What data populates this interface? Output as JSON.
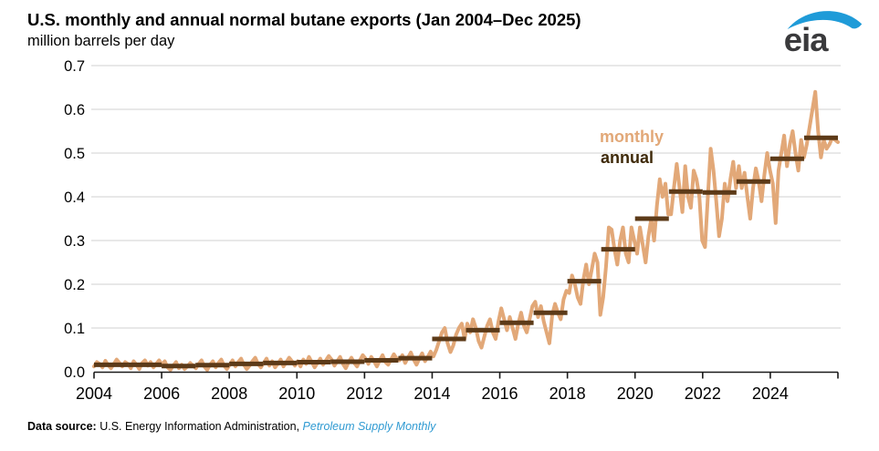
{
  "header": {
    "title": "U.S. monthly and annual normal butane exports (Jan 2004–Dec 2025)",
    "subtitle": "million barrels per day"
  },
  "logo": {
    "text": "eia",
    "swoosh_color": "#1f9bd8",
    "text_color": "#3a3a3c"
  },
  "footer": {
    "label": "Data source:",
    "text": " U.S. Energy Information Administration, ",
    "link_text": "Petroleum Supply Monthly",
    "link_color": "#2f9ad2"
  },
  "chart_data": {
    "type": "line",
    "title": "U.S. monthly and annual normal butane exports (Jan 2004–Dec 2025)",
    "ylabel": "million barrels per day",
    "ylim": [
      0,
      0.7
    ],
    "yticks": [
      0.0,
      0.1,
      0.2,
      0.3,
      0.4,
      0.5,
      0.6,
      0.7
    ],
    "xticks": [
      2004,
      2006,
      2008,
      2010,
      2012,
      2014,
      2016,
      2018,
      2020,
      2022,
      2024
    ],
    "x_end_tick": 2026,
    "x_range": [
      "2004-01",
      "2025-12"
    ],
    "grid": "horizontal",
    "legend_position": "inside-plot-upper-middle",
    "colors": {
      "monthly": "#e2a878",
      "annual": "#5c3a18",
      "annual_label": "#3f2a0a",
      "gridline": "#d9d9d9",
      "axis": "#1a1a1a"
    },
    "series": [
      {
        "name": "monthly",
        "type": "line",
        "start": "2004-01",
        "freq": "monthly",
        "values": [
          0.012,
          0.022,
          0.018,
          0.01,
          0.025,
          0.015,
          0.008,
          0.018,
          0.028,
          0.02,
          0.012,
          0.022,
          0.018,
          0.008,
          0.024,
          0.016,
          0.006,
          0.02,
          0.026,
          0.014,
          0.022,
          0.01,
          0.018,
          0.026,
          0.016,
          0.024,
          0.01,
          0.004,
          0.014,
          0.022,
          0.008,
          0.016,
          0.006,
          0.012,
          0.02,
          0.014,
          0.008,
          0.018,
          0.026,
          0.012,
          0.004,
          0.016,
          0.024,
          0.01,
          0.02,
          0.028,
          0.014,
          0.006,
          0.016,
          0.026,
          0.012,
          0.022,
          0.03,
          0.016,
          0.006,
          0.014,
          0.024,
          0.032,
          0.018,
          0.01,
          0.02,
          0.03,
          0.014,
          0.024,
          0.01,
          0.018,
          0.028,
          0.012,
          0.022,
          0.032,
          0.024,
          0.014,
          0.024,
          0.012,
          0.028,
          0.018,
          0.034,
          0.022,
          0.01,
          0.02,
          0.03,
          0.016,
          0.026,
          0.036,
          0.028,
          0.014,
          0.024,
          0.034,
          0.018,
          0.008,
          0.022,
          0.032,
          0.02,
          0.012,
          0.026,
          0.038,
          0.03,
          0.018,
          0.034,
          0.024,
          0.012,
          0.026,
          0.038,
          0.022,
          0.016,
          0.028,
          0.04,
          0.03,
          0.026,
          0.038,
          0.02,
          0.032,
          0.044,
          0.028,
          0.016,
          0.03,
          0.042,
          0.024,
          0.034,
          0.046,
          0.035,
          0.05,
          0.07,
          0.09,
          0.1,
          0.065,
          0.045,
          0.06,
          0.085,
          0.1,
          0.11,
          0.075,
          0.11,
          0.09,
          0.12,
          0.1,
          0.07,
          0.055,
          0.08,
          0.105,
          0.12,
          0.09,
          0.075,
          0.115,
          0.145,
          0.12,
          0.095,
          0.125,
          0.1,
          0.075,
          0.11,
          0.135,
          0.105,
          0.09,
          0.12,
          0.15,
          0.16,
          0.125,
          0.15,
          0.115,
          0.09,
          0.065,
          0.13,
          0.155,
          0.135,
          0.12,
          0.165,
          0.185,
          0.18,
          0.22,
          0.2,
          0.17,
          0.155,
          0.21,
          0.245,
          0.2,
          0.235,
          0.27,
          0.25,
          0.13,
          0.17,
          0.24,
          0.33,
          0.325,
          0.28,
          0.245,
          0.3,
          0.33,
          0.27,
          0.25,
          0.33,
          0.3,
          0.27,
          0.33,
          0.29,
          0.25,
          0.31,
          0.35,
          0.3,
          0.38,
          0.44,
          0.4,
          0.43,
          0.36,
          0.36,
          0.42,
          0.475,
          0.42,
          0.365,
          0.47,
          0.4,
          0.375,
          0.46,
          0.44,
          0.4,
          0.3,
          0.285,
          0.4,
          0.51,
          0.46,
          0.39,
          0.31,
          0.35,
          0.43,
          0.39,
          0.44,
          0.48,
          0.42,
          0.47,
          0.42,
          0.455,
          0.4,
          0.35,
          0.42,
          0.465,
          0.435,
          0.39,
          0.45,
          0.5,
          0.46,
          0.43,
          0.34,
          0.46,
          0.5,
          0.54,
          0.47,
          0.52,
          0.55,
          0.5,
          0.46,
          0.53,
          0.49,
          0.52,
          0.56,
          0.6,
          0.64,
          0.55,
          0.49,
          0.53,
          0.51,
          0.52,
          0.535,
          0.53,
          0.525
        ]
      },
      {
        "name": "annual",
        "type": "step-segments",
        "years": [
          2004,
          2005,
          2006,
          2007,
          2008,
          2009,
          2010,
          2011,
          2012,
          2013,
          2014,
          2015,
          2016,
          2017,
          2018,
          2019,
          2020,
          2021,
          2022,
          2023,
          2024,
          2025
        ],
        "values": [
          0.016,
          0.016,
          0.013,
          0.015,
          0.018,
          0.02,
          0.022,
          0.023,
          0.026,
          0.031,
          0.075,
          0.095,
          0.112,
          0.135,
          0.207,
          0.28,
          0.35,
          0.412,
          0.41,
          0.435,
          0.487,
          0.535
        ]
      }
    ]
  }
}
